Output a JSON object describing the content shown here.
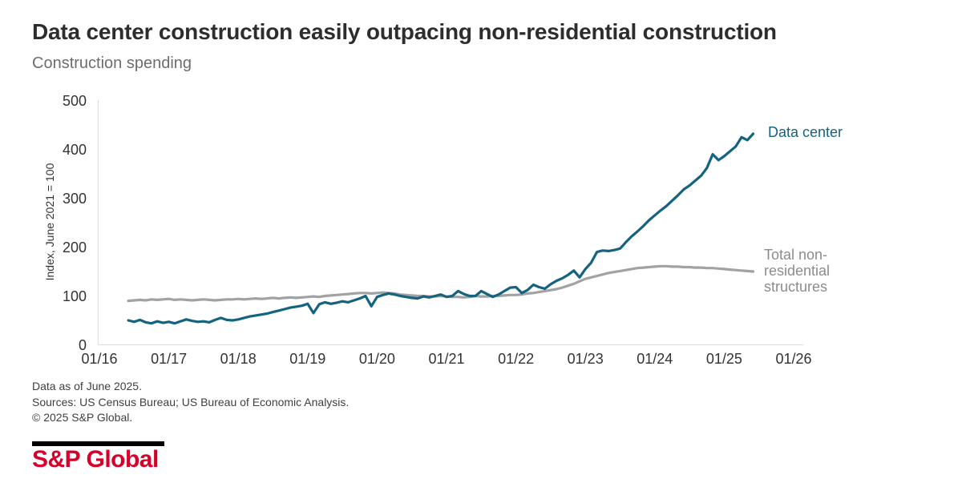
{
  "header": {
    "title": "Data center construction easily outpacing non-residential construction",
    "subtitle": "Construction spending"
  },
  "chart_data": {
    "type": "line",
    "title": "Data center construction easily outpacing non-residential construction",
    "subtitle": "Construction spending",
    "ylabel": "Index, June 2021 = 100",
    "ylim": [
      0,
      500
    ],
    "y_ticks": [
      0,
      100,
      200,
      300,
      400,
      500
    ],
    "x_ticks": [
      "01/16",
      "01/17",
      "01/18",
      "01/19",
      "01/20",
      "01/21",
      "01/22",
      "01/23",
      "01/24",
      "01/25",
      "01/26"
    ],
    "grid": false,
    "legend_position": "inline-right-of-lines",
    "axis_color": "#dcdcdc",
    "x": [
      "2016-06",
      "2016-07",
      "2016-08",
      "2016-09",
      "2016-10",
      "2016-11",
      "2016-12",
      "2017-01",
      "2017-02",
      "2017-03",
      "2017-04",
      "2017-05",
      "2017-06",
      "2017-07",
      "2017-08",
      "2017-09",
      "2017-10",
      "2017-11",
      "2017-12",
      "2018-01",
      "2018-02",
      "2018-03",
      "2018-04",
      "2018-05",
      "2018-06",
      "2018-07",
      "2018-08",
      "2018-09",
      "2018-10",
      "2018-11",
      "2018-12",
      "2019-01",
      "2019-02",
      "2019-03",
      "2019-04",
      "2019-05",
      "2019-06",
      "2019-07",
      "2019-08",
      "2019-09",
      "2019-10",
      "2019-11",
      "2019-12",
      "2020-01",
      "2020-02",
      "2020-03",
      "2020-04",
      "2020-05",
      "2020-06",
      "2020-07",
      "2020-08",
      "2020-09",
      "2020-10",
      "2020-11",
      "2020-12",
      "2021-01",
      "2021-02",
      "2021-03",
      "2021-04",
      "2021-05",
      "2021-06",
      "2021-07",
      "2021-08",
      "2021-09",
      "2021-10",
      "2021-11",
      "2021-12",
      "2022-01",
      "2022-02",
      "2022-03",
      "2022-04",
      "2022-05",
      "2022-06",
      "2022-07",
      "2022-08",
      "2022-09",
      "2022-10",
      "2022-11",
      "2022-12",
      "2023-01",
      "2023-02",
      "2023-03",
      "2023-04",
      "2023-05",
      "2023-06",
      "2023-07",
      "2023-08",
      "2023-09",
      "2023-10",
      "2023-11",
      "2023-12",
      "2024-01",
      "2024-02",
      "2024-03",
      "2024-04",
      "2024-05",
      "2024-06",
      "2024-07",
      "2024-08",
      "2024-09",
      "2024-10",
      "2024-11",
      "2024-12",
      "2025-01",
      "2025-02",
      "2025-03",
      "2025-04",
      "2025-05",
      "2025-06"
    ],
    "series": [
      {
        "name": "Data center",
        "color": "#15637f",
        "label_color": "#15637f",
        "values": [
          50,
          47,
          51,
          46,
          44,
          48,
          45,
          47,
          44,
          48,
          52,
          49,
          47,
          48,
          46,
          51,
          55,
          51,
          50,
          52,
          55,
          58,
          60,
          62,
          64,
          67,
          70,
          73,
          76,
          78,
          80,
          84,
          65,
          83,
          87,
          84,
          86,
          89,
          87,
          91,
          95,
          100,
          79,
          98,
          102,
          105,
          103,
          100,
          98,
          96,
          95,
          99,
          97,
          100,
          103,
          98,
          100,
          110,
          104,
          100,
          100,
          110,
          104,
          98,
          103,
          110,
          117,
          118,
          106,
          112,
          123,
          118,
          115,
          124,
          131,
          136,
          143,
          152,
          138,
          155,
          168,
          190,
          193,
          192,
          194,
          197,
          210,
          222,
          232,
          243,
          255,
          265,
          275,
          284,
          295,
          306,
          318,
          326,
          336,
          346,
          362,
          390,
          378,
          386,
          396,
          406,
          425,
          419,
          432
        ]
      },
      {
        "name": "Total non-residential structures",
        "color": "#a0a2a4",
        "label_color": "#8a8c8e",
        "values": [
          90,
          91,
          92,
          91,
          93,
          92,
          93,
          94,
          92,
          93,
          92,
          91,
          92,
          93,
          92,
          91,
          92,
          93,
          93,
          94,
          93,
          94,
          95,
          94,
          95,
          96,
          95,
          96,
          97,
          96,
          97,
          98,
          99,
          98,
          100,
          101,
          102,
          103,
          104,
          105,
          106,
          106,
          105,
          106,
          107,
          106,
          105,
          103,
          102,
          101,
          100,
          100,
          99,
          99,
          100,
          99,
          98,
          98,
          97,
          98,
          100,
          99,
          99,
          100,
          100,
          101,
          102,
          102,
          103,
          105,
          106,
          108,
          110,
          112,
          114,
          117,
          121,
          125,
          130,
          135,
          138,
          141,
          144,
          147,
          149,
          151,
          153,
          155,
          157,
          158,
          159,
          160,
          161,
          161,
          160,
          160,
          159,
          159,
          158,
          158,
          157,
          157,
          156,
          155,
          154,
          153,
          152,
          151,
          150
        ]
      }
    ]
  },
  "footer": {
    "lines": [
      "Data as of June 2025.",
      "Sources: US Census Bureau; US Bureau of Economic Analysis.",
      "© 2025 S&P Global."
    ]
  },
  "branding": {
    "logo_text": "S&P Global",
    "color": "#d6002a",
    "bar_color": "#000000"
  }
}
